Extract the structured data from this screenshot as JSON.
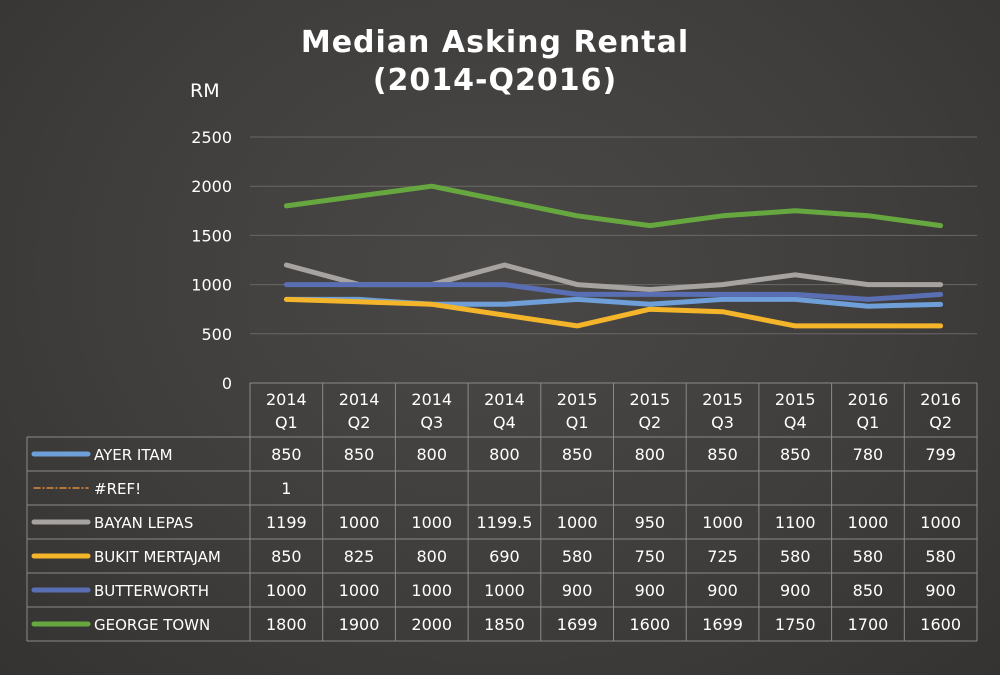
{
  "chart_data": {
    "type": "line",
    "title": "Median Asking Rental",
    "subtitle": "(2014-Q2016)",
    "ylabel": "RM",
    "ylim": [
      0,
      2500
    ],
    "yticks": [
      0,
      500,
      1000,
      1500,
      2000,
      2500
    ],
    "grid": true,
    "legend_placement": "data-table",
    "categories": [
      {
        "year": "2014",
        "quarter": "Q1"
      },
      {
        "year": "2014",
        "quarter": "Q2"
      },
      {
        "year": "2014",
        "quarter": "Q3"
      },
      {
        "year": "2014",
        "quarter": "Q4"
      },
      {
        "year": "2015",
        "quarter": "Q1"
      },
      {
        "year": "2015",
        "quarter": "Q2"
      },
      {
        "year": "2015",
        "quarter": "Q3"
      },
      {
        "year": "2015",
        "quarter": "Q4"
      },
      {
        "year": "2016",
        "quarter": "Q1"
      },
      {
        "year": "2016",
        "quarter": "Q2"
      }
    ],
    "series": [
      {
        "name": "AYER ITAM",
        "color": "#6f9fd8",
        "style": "solid",
        "values": [
          850,
          850,
          800,
          800,
          850,
          800,
          850,
          850,
          780,
          799
        ],
        "labels": [
          "850",
          "850",
          "800",
          "800",
          "850",
          "800",
          "850",
          "850",
          "780",
          "799"
        ]
      },
      {
        "name": "#REF!",
        "color": "#e08a3a",
        "style": "dashdot",
        "values": [
          1,
          null,
          null,
          null,
          null,
          null,
          null,
          null,
          null,
          null
        ],
        "labels": [
          "1",
          "",
          "",
          "",
          "",
          "",
          "",
          "",
          "",
          ""
        ]
      },
      {
        "name": "BAYAN LEPAS",
        "color": "#a7a3a1",
        "style": "solid",
        "values": [
          1199,
          1000,
          1000,
          1199.5,
          1000,
          950,
          1000,
          1100,
          1000,
          1000
        ],
        "labels": [
          "1199",
          "1000",
          "1000",
          "1199.5",
          "1000",
          "950",
          "1000",
          "1100",
          "1000",
          "1000"
        ]
      },
      {
        "name": "BUKIT MERTAJAM",
        "color": "#f5b52a",
        "style": "solid",
        "values": [
          850,
          825,
          800,
          690,
          580,
          750,
          725,
          580,
          580,
          580
        ],
        "labels": [
          "850",
          "825",
          "800",
          "690",
          "580",
          "750",
          "725",
          "580",
          "580",
          "580"
        ]
      },
      {
        "name": "BUTTERWORTH",
        "color": "#5a6fb3",
        "style": "solid",
        "values": [
          1000,
          1000,
          1000,
          1000,
          900,
          900,
          900,
          900,
          850,
          900
        ],
        "labels": [
          "1000",
          "1000",
          "1000",
          "1000",
          "900",
          "900",
          "900",
          "900",
          "850",
          "900"
        ]
      },
      {
        "name": "GEORGE TOWN",
        "color": "#66a83f",
        "style": "solid",
        "values": [
          1800,
          1900,
          2000,
          1850,
          1699,
          1600,
          1699,
          1750,
          1700,
          1600
        ],
        "labels": [
          "1800",
          "1900",
          "2000",
          "1850",
          "1699",
          "1600",
          "1699",
          "1750",
          "1700",
          "1600"
        ]
      }
    ]
  }
}
